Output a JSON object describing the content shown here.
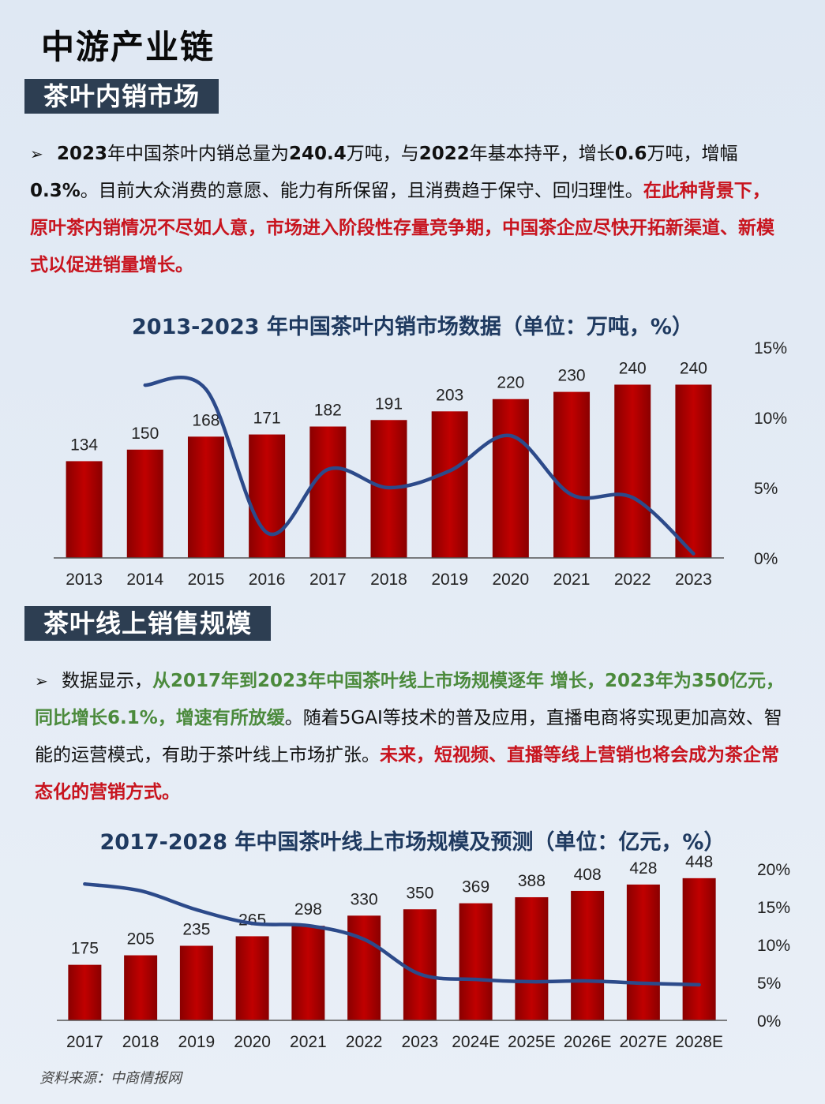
{
  "page": {
    "title": "中游产业链",
    "source": "资料来源：中商情报网"
  },
  "section1": {
    "banner": "茶叶内销市场",
    "p1": {
      "bullet": "➢",
      "s1": "2023",
      "s2": "年中国茶叶内销总量为",
      "s3": "240.4",
      "s4": "万吨，与",
      "s5": "2022",
      "s6": "年基本持平，增长",
      "s7": "0.6",
      "s8": "万吨，增幅",
      "s9": "0.3%",
      "s10": "。目前大众消费的意愿、能力有所保留，且消费趋于保守、回归理性。",
      "s11": "在此种背景下，原叶茶内销情况不尽如人意，市场进入阶段性存量竞争期，中国茶企应尽快开拓新渠道、新模式以促进销量增长。"
    }
  },
  "section2": {
    "banner": "茶叶线上销售规模",
    "p1": {
      "bullet": "➢",
      "s1": "数据显示，",
      "s2": "从2017年到2023年中国茶叶线上市场规模逐年 增长，2023年为350亿元，同比增长6.1%，增速有所放缓",
      "s3": "。随着5GAI等技术的普及应用，直播电商将实现更加高效、智能的运营模式，有助于茶叶线上市场扩张。",
      "s4": "未来，短视频、直播等线上营销也将会成为茶企常态化的营销方式。"
    }
  },
  "chart_data": [
    {
      "type": "bar",
      "title": "2013-2023 年中国茶叶内销市场数据（单位：万吨，%）",
      "categories": [
        "2013",
        "2014",
        "2015",
        "2016",
        "2017",
        "2018",
        "2019",
        "2020",
        "2021",
        "2022",
        "2023"
      ],
      "series": [
        {
          "values": [
            134,
            150,
            168,
            171,
            182,
            191,
            203,
            220,
            230,
            240,
            240
          ],
          "color": "#c00000",
          "axis": "left"
        },
        {
          "type": "line",
          "values": [
            null,
            12.3,
            12.0,
            1.8,
            6.3,
            5.0,
            6.2,
            8.7,
            4.5,
            4.3,
            0.3
          ],
          "color": "#2c4a8a",
          "axis": "right"
        }
      ],
      "bar_labels": [
        "134",
        "150",
        "168",
        "171",
        "182",
        "191",
        "203",
        "220",
        "230",
        "240",
        "240"
      ],
      "ylim": [
        0,
        270
      ],
      "y2lim": [
        0,
        15
      ],
      "y2ticks": [
        "0%",
        "5%",
        "10%",
        "15%"
      ],
      "grid": false,
      "legend": false
    },
    {
      "type": "bar",
      "title": "2017-2028 年中国茶叶线上市场规模及预测（单位：亿元，%）",
      "categories": [
        "2017",
        "2018",
        "2019",
        "2020",
        "2021",
        "2022",
        "2023",
        "2024E",
        "2025E",
        "2026E",
        "2027E",
        "2028E"
      ],
      "series": [
        {
          "values": [
            175,
            205,
            235,
            265,
            298,
            330,
            350,
            369,
            388,
            408,
            428,
            448
          ],
          "color": "#c00000",
          "axis": "left"
        },
        {
          "type": "line",
          "values": [
            18.0,
            17.1,
            14.6,
            12.8,
            12.5,
            10.7,
            6.1,
            5.4,
            5.1,
            5.2,
            4.9,
            4.7
          ],
          "color": "#2c4a8a",
          "axis": "right"
        }
      ],
      "bar_labels": [
        "175",
        "205",
        "235",
        "265",
        "298",
        "330",
        "350",
        "369",
        "388",
        "408",
        "428",
        "448"
      ],
      "ylim": [
        0,
        470
      ],
      "y2lim": [
        0,
        20
      ],
      "y2ticks": [
        "0%",
        "5%",
        "10%",
        "15%",
        "20%"
      ],
      "grid": false,
      "legend": false
    }
  ]
}
